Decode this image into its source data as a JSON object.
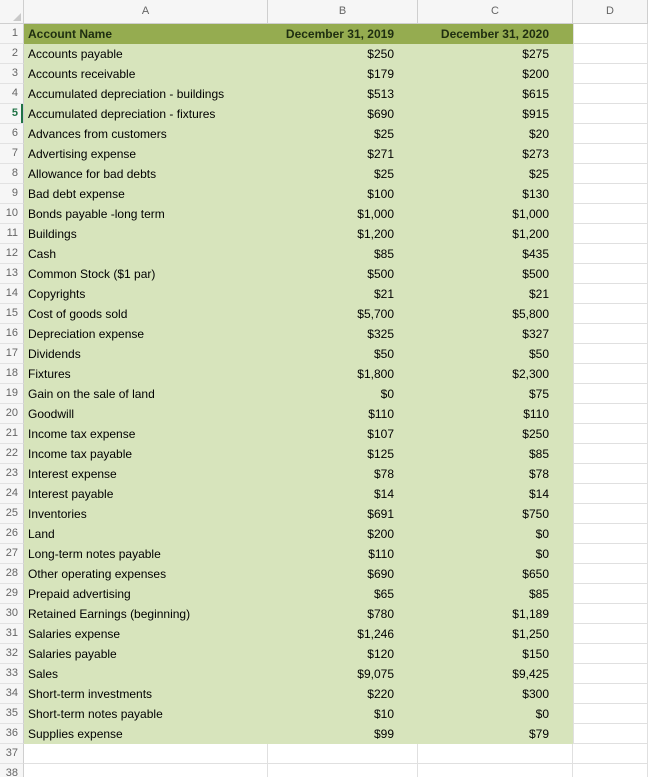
{
  "spreadsheet": {
    "column_letters": [
      "A",
      "B",
      "C",
      "D"
    ],
    "total_rows": 38,
    "active_row": 5,
    "header": {
      "account": "Account Name",
      "col2019": "December 31, 2019",
      "col2020": "December 31, 2020"
    },
    "rows": [
      {
        "account": "Accounts payable",
        "y2019": "$250",
        "y2020": "$275"
      },
      {
        "account": "Accounts receivable",
        "y2019": "$179",
        "y2020": "$200"
      },
      {
        "account": "Accumulated depreciation - buildings",
        "y2019": "$513",
        "y2020": "$615"
      },
      {
        "account": "Accumulated depreciation - fixtures",
        "y2019": "$690",
        "y2020": "$915"
      },
      {
        "account": "Advances from customers",
        "y2019": "$25",
        "y2020": "$20"
      },
      {
        "account": "Advertising expense",
        "y2019": "$271",
        "y2020": "$273"
      },
      {
        "account": "Allowance for bad debts",
        "y2019": "$25",
        "y2020": "$25"
      },
      {
        "account": "Bad debt expense",
        "y2019": "$100",
        "y2020": "$130"
      },
      {
        "account": "Bonds payable -long term",
        "y2019": "$1,000",
        "y2020": "$1,000"
      },
      {
        "account": "Buildings",
        "y2019": "$1,200",
        "y2020": "$1,200"
      },
      {
        "account": "Cash",
        "y2019": "$85",
        "y2020": "$435"
      },
      {
        "account": "Common Stock ($1 par)",
        "y2019": "$500",
        "y2020": "$500"
      },
      {
        "account": "Copyrights",
        "y2019": "$21",
        "y2020": "$21"
      },
      {
        "account": "Cost of goods sold",
        "y2019": "$5,700",
        "y2020": "$5,800"
      },
      {
        "account": "Depreciation expense",
        "y2019": "$325",
        "y2020": "$327"
      },
      {
        "account": "Dividends",
        "y2019": "$50",
        "y2020": "$50"
      },
      {
        "account": "Fixtures",
        "y2019": "$1,800",
        "y2020": "$2,300"
      },
      {
        "account": "Gain on the sale of land",
        "y2019": "$0",
        "y2020": "$75"
      },
      {
        "account": "Goodwill",
        "y2019": "$110",
        "y2020": "$110"
      },
      {
        "account": "Income tax expense",
        "y2019": "$107",
        "y2020": "$250"
      },
      {
        "account": "Income tax payable",
        "y2019": "$125",
        "y2020": "$85"
      },
      {
        "account": "Interest expense",
        "y2019": "$78",
        "y2020": "$78"
      },
      {
        "account": "Interest payable",
        "y2019": "$14",
        "y2020": "$14"
      },
      {
        "account": "Inventories",
        "y2019": "$691",
        "y2020": "$750"
      },
      {
        "account": "Land",
        "y2019": "$200",
        "y2020": "$0"
      },
      {
        "account": "Long-term notes payable",
        "y2019": "$110",
        "y2020": "$0"
      },
      {
        "account": "Other operating expenses",
        "y2019": "$690",
        "y2020": "$650"
      },
      {
        "account": "Prepaid advertising",
        "y2019": "$65",
        "y2020": "$85"
      },
      {
        "account": "Retained Earnings (beginning)",
        "y2019": "$780",
        "y2020": "$1,189"
      },
      {
        "account": "Salaries expense",
        "y2019": "$1,246",
        "y2020": "$1,250"
      },
      {
        "account": "Salaries payable",
        "y2019": "$120",
        "y2020": "$150"
      },
      {
        "account": "Sales",
        "y2019": "$9,075",
        "y2020": "$9,425"
      },
      {
        "account": "Short-term investments",
        "y2019": "$220",
        "y2020": "$300"
      },
      {
        "account": "Short-term notes payable",
        "y2019": "$10",
        "y2020": "$0"
      },
      {
        "account": "Supplies expense",
        "y2019": "$99",
        "y2020": "$79"
      }
    ],
    "colors": {
      "header_bg": "#95AC50",
      "header_text": "#1F2E10",
      "data_bg": "#D7E4BC",
      "strip_bg": "#F6F6F6",
      "active_row_color": "#217346"
    }
  }
}
